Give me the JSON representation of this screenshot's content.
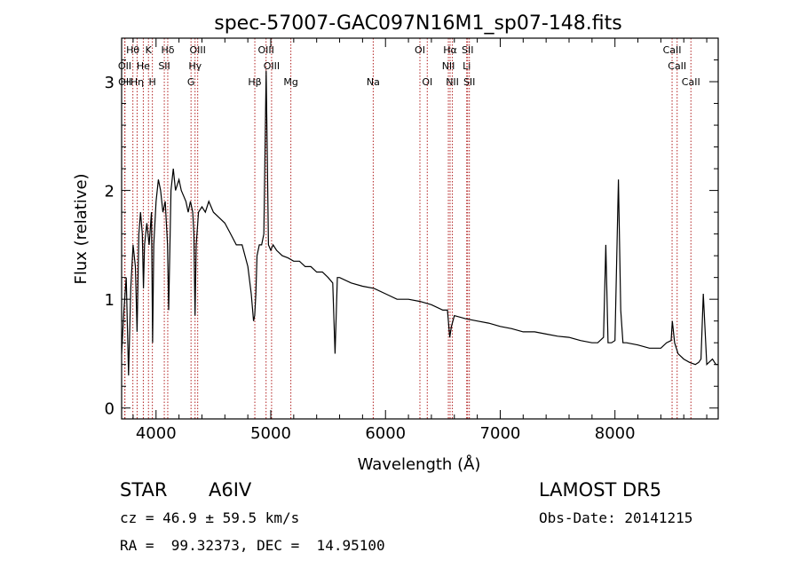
{
  "chart_data": {
    "type": "line",
    "title": "spec-57007-GAC097N16M1_sp07-148.fits",
    "xlabel": "Wavelength (Å)",
    "ylabel": "Flux (relative)",
    "xlim": [
      3700,
      8900
    ],
    "ylim": [
      -0.1,
      3.4
    ],
    "x_ticks": [
      4000,
      5000,
      6000,
      7000,
      8000
    ],
    "y_ticks": [
      0,
      1,
      2,
      3
    ],
    "grid": false,
    "line_color": "#000000",
    "marker_color": "#b22222",
    "spectrum": {
      "x": [
        3700,
        3720,
        3740,
        3760,
        3780,
        3800,
        3820,
        3835,
        3850,
        3865,
        3880,
        3890,
        3900,
        3920,
        3940,
        3960,
        3970,
        3980,
        4000,
        4020,
        4040,
        4060,
        4080,
        4100,
        4110,
        4130,
        4150,
        4170,
        4200,
        4220,
        4240,
        4260,
        4280,
        4300,
        4320,
        4330,
        4340,
        4350,
        4370,
        4400,
        4430,
        4460,
        4500,
        4550,
        4600,
        4650,
        4700,
        4750,
        4800,
        4830,
        4850,
        4860,
        4870,
        4880,
        4900,
        4920,
        4940,
        4960,
        4980,
        5000,
        5020,
        5050,
        5100,
        5150,
        5200,
        5250,
        5300,
        5350,
        5400,
        5450,
        5500,
        5540,
        5560,
        5580,
        5600,
        5700,
        5800,
        5900,
        6000,
        6100,
        6200,
        6300,
        6400,
        6500,
        6540,
        6560,
        6575,
        6600,
        6700,
        6800,
        6900,
        7000,
        7100,
        7200,
        7300,
        7400,
        7500,
        7600,
        7700,
        7800,
        7850,
        7900,
        7920,
        7940,
        7970,
        8000,
        8030,
        8050,
        8070,
        8100,
        8200,
        8300,
        8400,
        8450,
        8490,
        8500,
        8520,
        8550,
        8600,
        8650,
        8700,
        8730,
        8750,
        8770,
        8800,
        8850,
        8880,
        8900
      ],
      "y": [
        0.5,
        0.9,
        1.2,
        0.3,
        1.1,
        1.5,
        1.3,
        0.7,
        1.6,
        1.8,
        1.6,
        1.1,
        1.5,
        1.7,
        1.5,
        1.8,
        0.6,
        1.5,
        1.9,
        2.1,
        2.0,
        1.8,
        1.9,
        1.5,
        0.9,
        2.0,
        2.2,
        2.0,
        2.1,
        2.0,
        1.95,
        1.9,
        1.8,
        1.9,
        1.8,
        1.6,
        0.85,
        1.5,
        1.8,
        1.85,
        1.8,
        1.9,
        1.8,
        1.75,
        1.7,
        1.6,
        1.5,
        1.5,
        1.3,
        1.05,
        0.8,
        0.85,
        1.05,
        1.4,
        1.5,
        1.5,
        1.6,
        3.1,
        1.5,
        1.45,
        1.5,
        1.45,
        1.4,
        1.38,
        1.35,
        1.35,
        1.3,
        1.3,
        1.25,
        1.25,
        1.2,
        1.15,
        0.5,
        1.2,
        1.2,
        1.15,
        1.12,
        1.1,
        1.05,
        1.0,
        1.0,
        0.98,
        0.95,
        0.9,
        0.9,
        0.65,
        0.75,
        0.85,
        0.82,
        0.8,
        0.78,
        0.75,
        0.73,
        0.7,
        0.7,
        0.68,
        0.66,
        0.65,
        0.62,
        0.6,
        0.6,
        0.65,
        1.5,
        0.6,
        0.6,
        0.62,
        2.1,
        0.9,
        0.6,
        0.6,
        0.58,
        0.55,
        0.55,
        0.6,
        0.62,
        0.8,
        0.6,
        0.5,
        0.45,
        0.42,
        0.4,
        0.42,
        0.45,
        1.05,
        0.4,
        0.45,
        0.4,
        0.4
      ]
    },
    "lines": [
      {
        "label": "Hθ",
        "x": 3798,
        "row": 0
      },
      {
        "label": "K",
        "x": 3934,
        "row": 0
      },
      {
        "label": "Hδ",
        "x": 4102,
        "row": 0
      },
      {
        "label": "OIII",
        "x": 4363,
        "row": 0
      },
      {
        "label": "OIII",
        "x": 4959,
        "row": 0
      },
      {
        "label": "OI",
        "x": 6300,
        "row": 0
      },
      {
        "label": "Hα",
        "x": 6563,
        "row": 0
      },
      {
        "label": "SII",
        "x": 6716,
        "row": 0
      },
      {
        "label": "CaII",
        "x": 8498,
        "row": 0
      },
      {
        "label": "OII",
        "x": 3727,
        "row": 1
      },
      {
        "label": "He",
        "x": 3889,
        "row": 1
      },
      {
        "label": "SII",
        "x": 4072,
        "row": 1
      },
      {
        "label": "Hγ",
        "x": 4340,
        "row": 1
      },
      {
        "label": "OIII",
        "x": 5007,
        "row": 1
      },
      {
        "label": "NII",
        "x": 6548,
        "row": 1
      },
      {
        "label": "Li",
        "x": 6708,
        "row": 1
      },
      {
        "label": "CaII",
        "x": 8542,
        "row": 1
      },
      {
        "label": "OII",
        "x": 3729,
        "row": 2
      },
      {
        "label": "Hη",
        "x": 3835,
        "row": 2
      },
      {
        "label": "H",
        "x": 3968,
        "row": 2
      },
      {
        "label": "G",
        "x": 4305,
        "row": 2
      },
      {
        "label": "Hβ",
        "x": 4861,
        "row": 2
      },
      {
        "label": "Mg",
        "x": 5175,
        "row": 2
      },
      {
        "label": "Na",
        "x": 5893,
        "row": 2
      },
      {
        "label": "OI",
        "x": 6364,
        "row": 2
      },
      {
        "label": "NII",
        "x": 6583,
        "row": 2
      },
      {
        "label": "SII",
        "x": 6731,
        "row": 2
      },
      {
        "label": "CaII",
        "x": 8662,
        "row": 2
      }
    ]
  },
  "info": {
    "object_class": "STAR",
    "subclass": "A6IV",
    "survey": "LAMOST DR5",
    "redshift": "cz = 46.9 ± 59.5 km/s",
    "obs_date": "Obs-Date: 20141215",
    "coords": "RA =  99.32373, DEC =  14.95100"
  }
}
